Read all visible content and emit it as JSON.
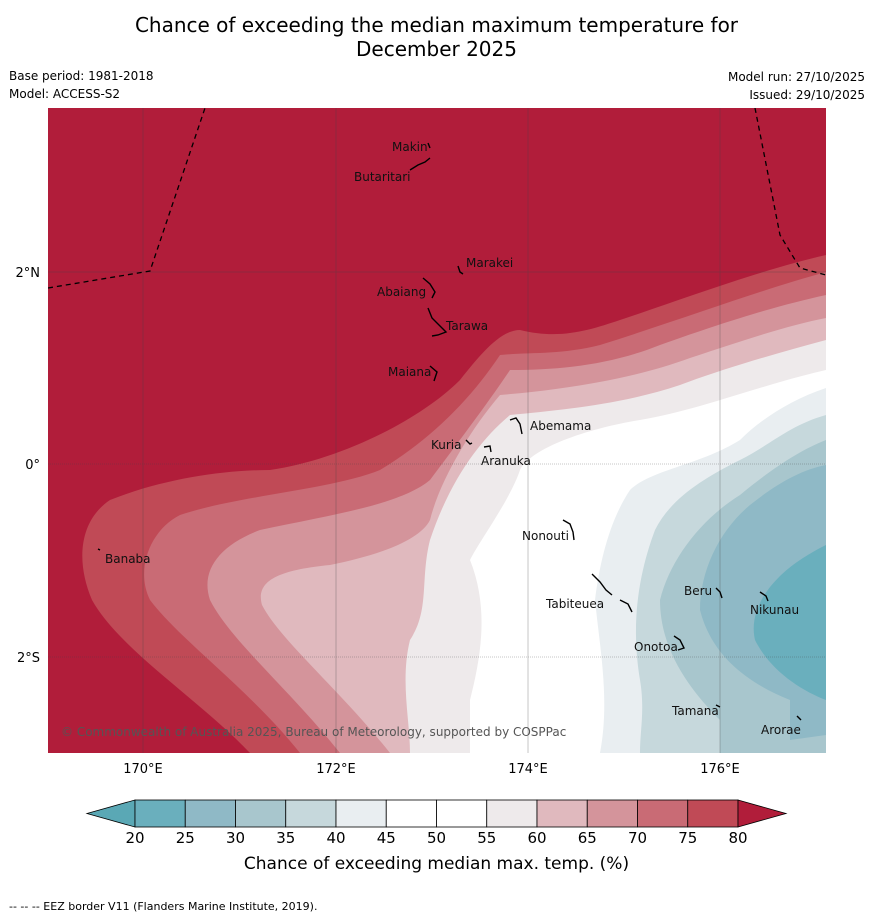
{
  "title": {
    "line1": "Chance of exceeding the median maximum temperature for",
    "line2": "December 2025"
  },
  "meta": {
    "base_period": "Base period: 1981-2018",
    "model": "Model: ACCESS-S2",
    "model_run": "Model run: 27/10/2025",
    "issued": "Issued: 29/10/2025"
  },
  "axes": {
    "lon_ticks": [
      "170°E",
      "172°E",
      "174°E",
      "176°E"
    ],
    "lat_ticks": [
      "2°N",
      "0°",
      "2°S"
    ]
  },
  "places": [
    "Makin",
    "Butaritari",
    "Marakei",
    "Abaiang",
    "Tarawa",
    "Maiana",
    "Abemama",
    "Kuria",
    "Aranuka",
    "Nonouti",
    "Banaba",
    "Beru",
    "Nikunau",
    "Tabiteuea",
    "Onotoa",
    "Tamana",
    "Arorae"
  ],
  "copyright": "© Commonwealth of Australia 2025, Bureau of Meteorology, supported by COSPPac",
  "colorbar": {
    "labels": [
      "20",
      "25",
      "30",
      "35",
      "40",
      "45",
      "50",
      "55",
      "60",
      "65",
      "70",
      "75",
      "80"
    ],
    "title": "Chance of exceeding median max. temp. (%)",
    "colors": {
      "below20": "#5aa8b5",
      "c20_25": "#6aafbd",
      "c25_30": "#8fb9c6",
      "c30_35": "#a8c6cd",
      "c35_40": "#c6d8dc",
      "c40_45": "#e9eef1",
      "c45_50": "#ffffff",
      "c50_55": "#ffffff",
      "c55_60": "#eeeaeb",
      "c60_65": "#e0b9be",
      "c65_70": "#d4949b",
      "c70_75": "#c96b75",
      "c75_80": "#c04a56",
      "above80": "#b11d3a"
    }
  },
  "footnote": "--  --  -- EEZ border V11 (Flanders Marine Institute, 2019)."
}
